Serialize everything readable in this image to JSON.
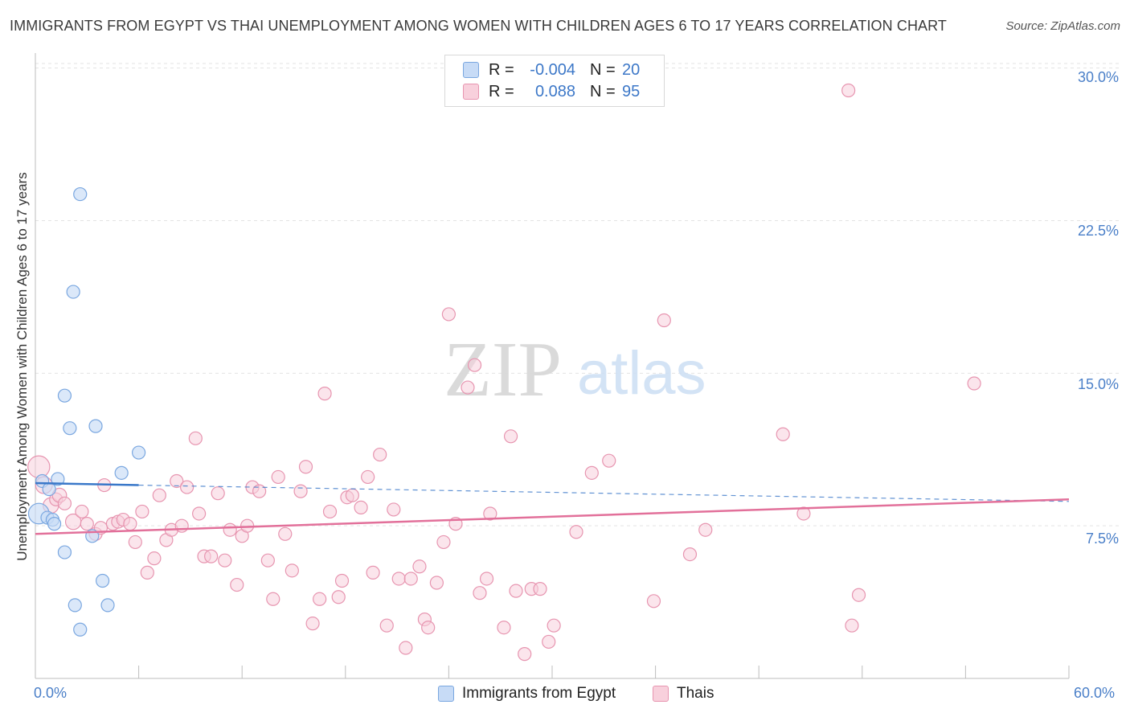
{
  "title": "IMMIGRANTS FROM EGYPT VS THAI UNEMPLOYMENT AMONG WOMEN WITH CHILDREN AGES 6 TO 17 YEARS CORRELATION CHART",
  "source": "Source: ZipAtlas.com",
  "watermark": {
    "zip": "ZIP",
    "atlas": "atlas"
  },
  "legend": {
    "series1": {
      "r_label": "R =",
      "r_value": "-0.004",
      "n_label": "N =",
      "n_value": "20"
    },
    "series2": {
      "r_label": "R =",
      "r_value": "0.088",
      "n_label": "N =",
      "n_value": "95"
    }
  },
  "bottom_legend": {
    "series1": "Immigrants from Egypt",
    "series2": "Thais"
  },
  "colors": {
    "egypt_fill": "#c7dbf6",
    "egypt_stroke": "#7aa7e0",
    "egypt_line": "#3a78c9",
    "thai_fill": "#f8d0dc",
    "thai_stroke": "#e795b0",
    "thai_line": "#e2709a",
    "tick_text": "#4a7fc8",
    "grid": "#e3e3e3"
  },
  "chart_data": {
    "type": "scatter",
    "title": "IMMIGRANTS FROM EGYPT VS THAI UNEMPLOYMENT AMONG WOMEN WITH CHILDREN AGES 6 TO 17 YEARS CORRELATION CHART",
    "xlabel": "",
    "ylabel": "Unemployment Among Women with Children Ages 6 to 17 years",
    "xlim": [
      0,
      60
    ],
    "ylim": [
      0,
      30.5
    ],
    "x_tick_labels": [
      {
        "value": 0,
        "label": "0.0%"
      },
      {
        "value": 60,
        "label": "60.0%"
      }
    ],
    "y_tick_labels": [
      {
        "value": 7.5,
        "label": "7.5%"
      },
      {
        "value": 15,
        "label": "15.0%"
      },
      {
        "value": 22.5,
        "label": "22.5%"
      },
      {
        "value": 30,
        "label": "30.0%"
      }
    ],
    "series": [
      {
        "name": "Immigrants from Egypt",
        "r": -0.004,
        "n": 20,
        "points": [
          [
            0.2,
            8.1,
            1.6
          ],
          [
            0.4,
            9.7,
            1
          ],
          [
            0.7,
            7.9,
            1
          ],
          [
            0.8,
            9.3,
            1
          ],
          [
            1.0,
            7.8,
            1
          ],
          [
            1.1,
            7.6,
            1
          ],
          [
            1.3,
            9.8,
            1
          ],
          [
            1.7,
            13.9,
            1
          ],
          [
            1.7,
            6.2,
            1
          ],
          [
            2.0,
            12.3,
            1
          ],
          [
            2.2,
            19.0,
            1
          ],
          [
            2.3,
            3.6,
            1
          ],
          [
            2.6,
            2.4,
            1
          ],
          [
            2.6,
            23.8,
            1
          ],
          [
            3.3,
            7.0,
            1
          ],
          [
            3.5,
            12.4,
            1
          ],
          [
            3.9,
            4.8,
            1
          ],
          [
            4.2,
            3.6,
            1
          ],
          [
            5.0,
            10.1,
            1
          ],
          [
            6.0,
            11.1,
            1
          ]
        ],
        "trend": {
          "x": [
            0,
            6.0
          ],
          "y": [
            9.6,
            9.5
          ]
        },
        "trend_extended": {
          "x": [
            6.0,
            60
          ],
          "y": [
            9.5,
            8.7
          ]
        }
      },
      {
        "name": "Thais",
        "r": 0.088,
        "n": 95,
        "points": [
          [
            0.2,
            10.4,
            1.7
          ],
          [
            0.5,
            9.5,
            1.3
          ],
          [
            0.9,
            8.5,
            1.2
          ],
          [
            1.2,
            8.8,
            1
          ],
          [
            1.4,
            9.0,
            1.1
          ],
          [
            1.7,
            8.6,
            1
          ],
          [
            2.2,
            7.7,
            1.2
          ],
          [
            2.7,
            8.2,
            1
          ],
          [
            3.0,
            7.6,
            1
          ],
          [
            3.5,
            7.1,
            1
          ],
          [
            3.8,
            7.4,
            1
          ],
          [
            4.0,
            9.5,
            1
          ],
          [
            4.5,
            7.6,
            1
          ],
          [
            4.8,
            7.7,
            1
          ],
          [
            5.1,
            7.8,
            1
          ],
          [
            5.5,
            7.6,
            1
          ],
          [
            5.8,
            6.7,
            1
          ],
          [
            6.2,
            8.2,
            1
          ],
          [
            6.5,
            5.2,
            1
          ],
          [
            6.9,
            5.9,
            1
          ],
          [
            7.2,
            9.0,
            1
          ],
          [
            7.6,
            6.8,
            1
          ],
          [
            7.9,
            7.3,
            1
          ],
          [
            8.2,
            9.7,
            1
          ],
          [
            8.5,
            7.5,
            1
          ],
          [
            8.8,
            9.4,
            1
          ],
          [
            9.3,
            11.8,
            1
          ],
          [
            9.5,
            8.1,
            1
          ],
          [
            9.8,
            6.0,
            1
          ],
          [
            10.2,
            6.0,
            1
          ],
          [
            10.6,
            9.1,
            1
          ],
          [
            11.0,
            5.8,
            1
          ],
          [
            11.3,
            7.3,
            1
          ],
          [
            11.7,
            4.6,
            1
          ],
          [
            12.0,
            7.0,
            1
          ],
          [
            12.3,
            7.5,
            1
          ],
          [
            12.6,
            9.4,
            1
          ],
          [
            13.0,
            9.2,
            1
          ],
          [
            13.5,
            5.8,
            1
          ],
          [
            13.8,
            3.9,
            1
          ],
          [
            14.1,
            9.9,
            1
          ],
          [
            14.5,
            7.1,
            1
          ],
          [
            14.9,
            5.3,
            1
          ],
          [
            15.4,
            9.2,
            1
          ],
          [
            15.7,
            10.4,
            1
          ],
          [
            16.1,
            2.7,
            1
          ],
          [
            16.5,
            3.9,
            1
          ],
          [
            16.8,
            14.0,
            1
          ],
          [
            17.1,
            8.2,
            1
          ],
          [
            17.6,
            4.0,
            1
          ],
          [
            17.8,
            4.8,
            1
          ],
          [
            18.1,
            8.9,
            1
          ],
          [
            18.4,
            9.0,
            1
          ],
          [
            18.9,
            8.4,
            1
          ],
          [
            19.3,
            9.9,
            1
          ],
          [
            19.6,
            5.2,
            1
          ],
          [
            20.0,
            11.0,
            1
          ],
          [
            20.4,
            2.6,
            1
          ],
          [
            20.8,
            8.3,
            1
          ],
          [
            21.1,
            4.9,
            1
          ],
          [
            21.5,
            1.5,
            1
          ],
          [
            21.8,
            4.9,
            1
          ],
          [
            22.3,
            5.5,
            1
          ],
          [
            22.6,
            2.9,
            1
          ],
          [
            22.8,
            2.5,
            1
          ],
          [
            23.3,
            4.7,
            1
          ],
          [
            23.7,
            6.7,
            1
          ],
          [
            24.0,
            17.9,
            1
          ],
          [
            24.4,
            7.6,
            1
          ],
          [
            25.1,
            14.3,
            1
          ],
          [
            25.5,
            15.4,
            1
          ],
          [
            25.8,
            4.2,
            1
          ],
          [
            26.2,
            4.9,
            1
          ],
          [
            26.4,
            8.1,
            1
          ],
          [
            27.2,
            2.5,
            1
          ],
          [
            27.6,
            11.9,
            1
          ],
          [
            27.9,
            4.3,
            1
          ],
          [
            28.4,
            1.2,
            1
          ],
          [
            28.8,
            4.4,
            1
          ],
          [
            29.3,
            4.4,
            1
          ],
          [
            29.8,
            1.8,
            1
          ],
          [
            30.1,
            2.6,
            1
          ],
          [
            31.4,
            7.2,
            1
          ],
          [
            32.3,
            10.1,
            1
          ],
          [
            33.3,
            10.7,
            1
          ],
          [
            35.9,
            3.8,
            1
          ],
          [
            36.5,
            17.6,
            1
          ],
          [
            38.0,
            6.1,
            1
          ],
          [
            38.9,
            7.3,
            1
          ],
          [
            43.4,
            12.0,
            1
          ],
          [
            44.6,
            8.1,
            1
          ],
          [
            47.2,
            28.9,
            1
          ],
          [
            47.4,
            2.6,
            1
          ],
          [
            47.8,
            4.1,
            1
          ],
          [
            54.5,
            14.5,
            1
          ]
        ],
        "trend": {
          "x": [
            0,
            60
          ],
          "y": [
            7.1,
            8.8
          ]
        }
      }
    ]
  }
}
